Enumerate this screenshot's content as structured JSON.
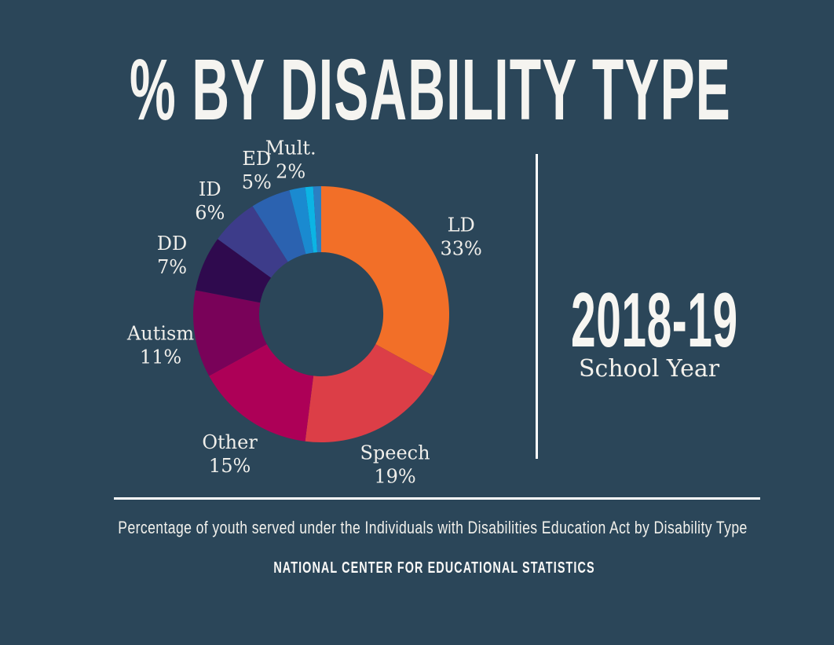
{
  "title": "% BY DISABILITY TYPE",
  "period": {
    "year": "2018-19",
    "subtitle": "School Year"
  },
  "caption": "Percentage of youth served under the Individuals with Disabilities Education Act by Disability Type",
  "source": "NATIONAL CENTER FOR EDUCATIONAL STATISTICS",
  "colors": {
    "background": "#2b4659",
    "text": "#f2f1ec",
    "divider": "#ffffff"
  },
  "chart_data": {
    "type": "pie",
    "subtype": "donut",
    "title": "% BY DISABILITY TYPE",
    "direction": "clockwise",
    "start_angle_deg": 0,
    "hole_ratio": 0.485,
    "legend": "none",
    "labels_position": "outside",
    "segments": [
      {
        "label": "LD",
        "value": 33,
        "display": "33%",
        "color": "#f26f28"
      },
      {
        "label": "Speech",
        "value": 19,
        "display": "19%",
        "color": "#dc3e47"
      },
      {
        "label": "Other",
        "value": 15,
        "display": "15%",
        "color": "#ad0057"
      },
      {
        "label": "Autism",
        "value": 11,
        "display": "11%",
        "color": "#790259"
      },
      {
        "label": "DD",
        "value": 7,
        "display": "7%",
        "color": "#2f0a4e"
      },
      {
        "label": "ID",
        "value": 6,
        "display": "6%",
        "color": "#3d3c8a"
      },
      {
        "label": "ED",
        "value": 5,
        "display": "5%",
        "color": "#2b62b0"
      },
      {
        "label": "Mult.",
        "value": 2,
        "display": "2%",
        "color": "#1a8ad0"
      },
      {
        "label": "",
        "value": 1,
        "display": "",
        "color": "#0cb4e4"
      },
      {
        "label": "",
        "value": 1,
        "display": "",
        "color": "#2b7fc3"
      }
    ]
  }
}
